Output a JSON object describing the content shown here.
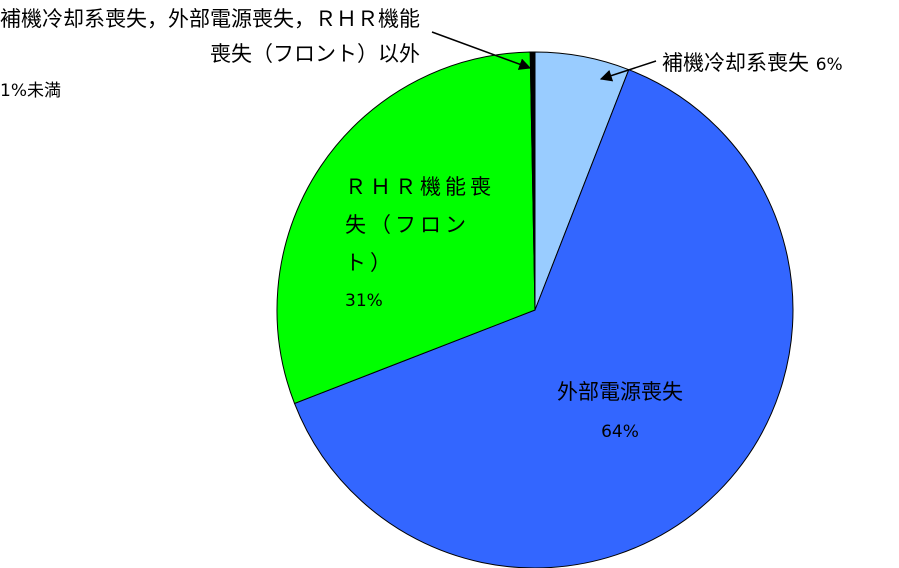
{
  "chart_data": {
    "type": "pie",
    "series": [
      {
        "name": "補機冷却系喪失",
        "color": "#99ccff",
        "values": [
          6
        ],
        "value_labels": [
          "6%"
        ]
      },
      {
        "name": "外部電源喪失",
        "color": "#3366ff",
        "values": [
          64
        ],
        "value_labels": [
          "64%"
        ]
      },
      {
        "name": "ＲＨＲ機能喪失（フロント）",
        "color": "#00ff00",
        "values": [
          31
        ],
        "value_labels": [
          "31%"
        ]
      },
      {
        "name": "補機冷却系喪失，外部電源喪失，ＲＨＲ機能喪失（フロント）以外",
        "color": "#000000",
        "values": [
          0.3
        ],
        "value_labels": [
          "1%未満"
        ]
      }
    ]
  }
}
